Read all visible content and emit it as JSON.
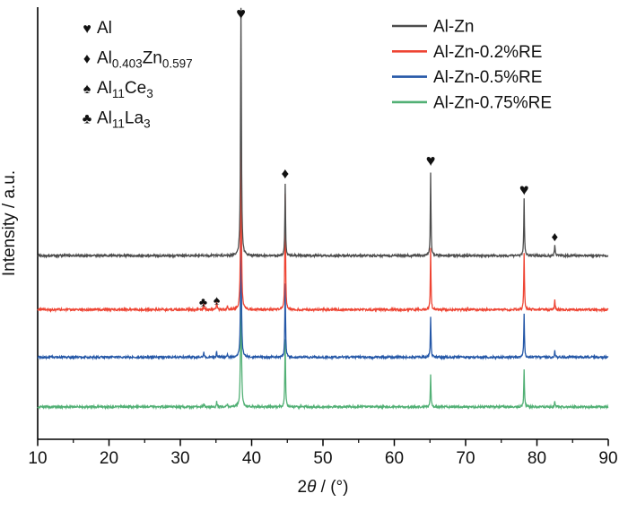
{
  "chart_data": {
    "type": "line",
    "title": "",
    "xlabel": "2θ / (°)",
    "xlabel_parts": {
      "prefix": "2",
      "theta": "θ",
      "suffix": " / (°)"
    },
    "ylabel": "Intensity / a.u.",
    "xlim": [
      10,
      90
    ],
    "x_ticks": [
      10,
      20,
      30,
      40,
      50,
      60,
      70,
      80,
      90
    ],
    "x_minor_ticks": [
      15,
      25,
      35,
      45,
      55,
      65,
      75,
      85
    ],
    "grid": false,
    "legend_position": "top-right",
    "phase_legend": [
      {
        "glyph": "♥",
        "phase": "Al",
        "formula": [
          {
            "t": "Al"
          }
        ]
      },
      {
        "glyph": "♦",
        "phase": "Al0.403Zn0.597",
        "formula": [
          {
            "t": "Al"
          },
          {
            "t": "0.403",
            "sub": true
          },
          {
            "t": "Zn"
          },
          {
            "t": "0.597",
            "sub": true
          }
        ]
      },
      {
        "glyph": "♠",
        "phase": "Al11Ce3",
        "formula": [
          {
            "t": "Al"
          },
          {
            "t": "11",
            "sub": true
          },
          {
            "t": "Ce"
          },
          {
            "t": "3",
            "sub": true
          }
        ]
      },
      {
        "glyph": "♣",
        "phase": "Al11La3",
        "formula": [
          {
            "t": "Al"
          },
          {
            "t": "11",
            "sub": true
          },
          {
            "t": "La"
          },
          {
            "t": "3",
            "sub": true
          }
        ]
      }
    ],
    "series": [
      {
        "name": "Al-Zn",
        "color": "#4d4d4d",
        "baseline": 0.425,
        "peaks": [
          {
            "x": 38.5,
            "h": 0.575,
            "w": 0.07
          },
          {
            "x": 44.7,
            "h": 0.166
          },
          {
            "x": 65.1,
            "h": 0.193
          },
          {
            "x": 78.2,
            "h": 0.131
          },
          {
            "x": 82.5,
            "h": 0.026
          }
        ]
      },
      {
        "name": "Al-Zn-0.2%RE",
        "color": "#ee4433",
        "baseline": 0.3,
        "peaks": [
          {
            "x": 33.3,
            "h": 0.014
          },
          {
            "x": 35.1,
            "h": 0.018
          },
          {
            "x": 36.6,
            "h": 0.01
          },
          {
            "x": 38.5,
            "h": 0.384,
            "w": 0.07
          },
          {
            "x": 44.7,
            "h": 0.27
          },
          {
            "x": 65.1,
            "h": 0.141
          },
          {
            "x": 78.2,
            "h": 0.131
          },
          {
            "x": 82.5,
            "h": 0.022
          }
        ]
      },
      {
        "name": "Al-Zn-0.5%RE",
        "color": "#2457a7",
        "baseline": 0.19,
        "peaks": [
          {
            "x": 33.3,
            "h": 0.01
          },
          {
            "x": 35.1,
            "h": 0.013
          },
          {
            "x": 36.6,
            "h": 0.008
          },
          {
            "x": 38.5,
            "h": 0.3,
            "w": 0.07
          },
          {
            "x": 44.7,
            "h": 0.172
          },
          {
            "x": 65.1,
            "h": 0.095
          },
          {
            "x": 78.2,
            "h": 0.1
          },
          {
            "x": 82.5,
            "h": 0.015
          }
        ]
      },
      {
        "name": "Al-Zn-0.75%RE",
        "color": "#52b075",
        "baseline": 0.075,
        "peaks": [
          {
            "x": 33.3,
            "h": 0.01
          },
          {
            "x": 35.1,
            "h": 0.013
          },
          {
            "x": 36.6,
            "h": 0.008
          },
          {
            "x": 38.5,
            "h": 0.315,
            "w": 0.07
          },
          {
            "x": 44.7,
            "h": 0.158
          },
          {
            "x": 65.1,
            "h": 0.075
          },
          {
            "x": 78.2,
            "h": 0.087
          },
          {
            "x": 82.5,
            "h": 0.012
          }
        ]
      }
    ],
    "peak_markers": [
      {
        "glyph": "♥",
        "x": 38.5,
        "y": 0.985,
        "size": 18
      },
      {
        "glyph": "♦",
        "x": 44.7,
        "y": 0.615,
        "size": 17
      },
      {
        "glyph": "♥",
        "x": 65.1,
        "y": 0.645,
        "size": 18
      },
      {
        "glyph": "♥",
        "x": 78.2,
        "y": 0.578,
        "size": 18
      },
      {
        "glyph": "♦",
        "x": 82.5,
        "y": 0.468,
        "size": 15
      },
      {
        "glyph": "♣",
        "x": 33.2,
        "y": 0.318,
        "size": 14
      },
      {
        "glyph": "♠",
        "x": 35.1,
        "y": 0.323,
        "size": 14
      }
    ]
  }
}
